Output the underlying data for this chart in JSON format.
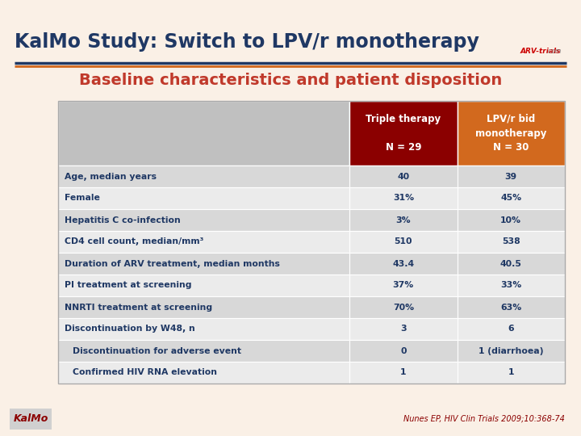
{
  "title": "KalMo Study: Switch to LPV/r monotherapy",
  "subtitle": "Baseline characteristics and patient disposition",
  "title_color": "#1F3864",
  "subtitle_color": "#C0392B",
  "bg_color": "#FAF0E6",
  "header1_bg": "#8B0000",
  "header2_bg": "#D2691E",
  "header1_text": "Triple therapy\n\nN = 29",
  "header2_text": "LPV/r bid\nmonotherapy\nN = 30",
  "rows": [
    [
      "Age, median years",
      "40",
      "39",
      true
    ],
    [
      "Female",
      "31%",
      "45%",
      true
    ],
    [
      "Hepatitis C co-infection",
      "3%",
      "10%",
      true
    ],
    [
      "CD4 cell count, median/mm³",
      "510",
      "538",
      true
    ],
    [
      "Duration of ARV treatment, median months",
      "43.4",
      "40.5",
      true
    ],
    [
      "PI treatment at screening",
      "37%",
      "33%",
      true
    ],
    [
      "NNRTI treatment at screening",
      "70%",
      "63%",
      true
    ],
    [
      "Discontinuation by W48, n",
      "3",
      "6",
      true
    ],
    [
      "Discontinuation for adverse event",
      "0",
      "1 (diarrhoea)",
      false
    ],
    [
      "Confirmed HIV RNA elevation",
      "1",
      "1",
      false
    ]
  ],
  "odd_row_color": "#D8D8D8",
  "even_row_color": "#EBEBEB",
  "text_color": "#1F3864",
  "footer_left": "KalMo",
  "footer_right": "Nunes EP, HIV Clin Trials 2009;10:368-74",
  "footer_color": "#8B0000",
  "line1_color": "#1F3864",
  "line2_color": "#D2691E",
  "logo_text": "ARV-trials",
  "logo_dot": "com"
}
